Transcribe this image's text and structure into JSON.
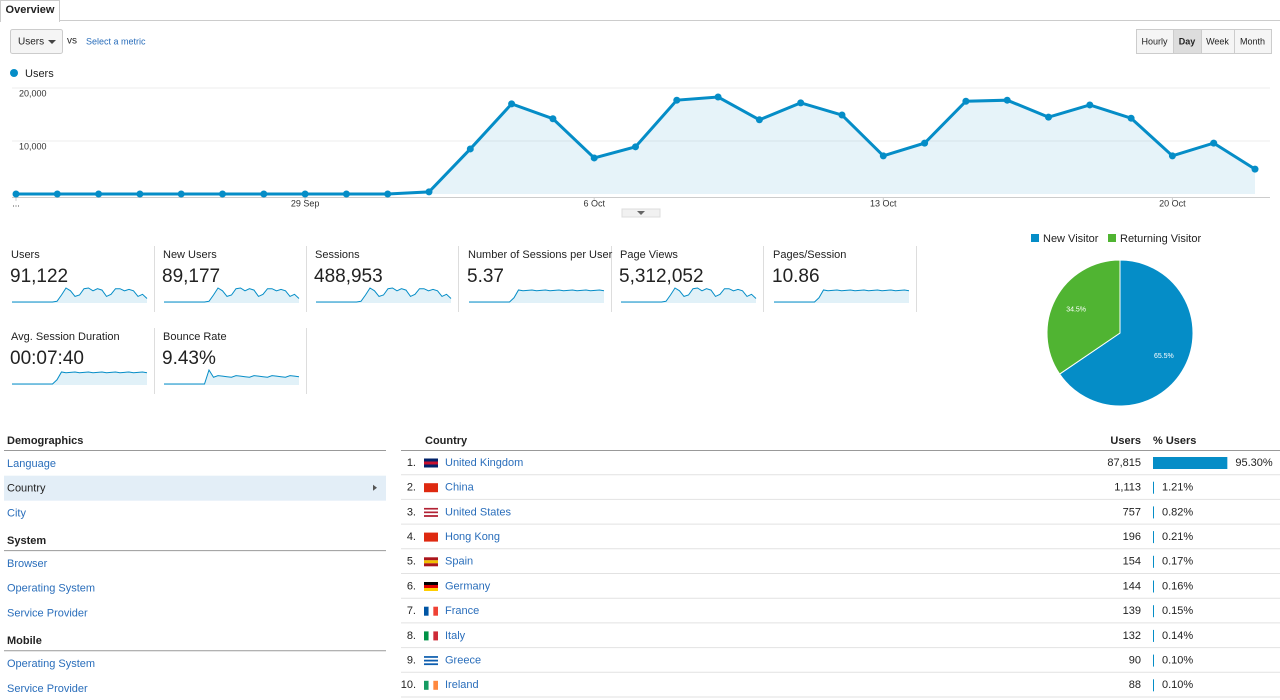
{
  "tabs": [
    "Overview"
  ],
  "controls": {
    "metric": "Users",
    "vs": "vs",
    "select_metric": "Select a metric",
    "granularity": [
      {
        "label": "Hourly",
        "active": false
      },
      {
        "label": "Day",
        "active": true
      },
      {
        "label": "Week",
        "active": false
      },
      {
        "label": "Month",
        "active": false
      }
    ]
  },
  "chart_data": [
    {
      "type": "line",
      "x": [
        "...",
        null,
        null,
        null,
        null,
        null,
        null,
        "29 Sep",
        null,
        null,
        null,
        null,
        null,
        null,
        "6 Oct",
        null,
        null,
        null,
        null,
        null,
        null,
        "13 Oct",
        null,
        null,
        null,
        null,
        null,
        null,
        "20 Oct",
        null,
        null
      ],
      "series": [
        {
          "name": "Users",
          "color": "#058dc7",
          "values": [
            0,
            0,
            0,
            0,
            0,
            0,
            0,
            0,
            0,
            0,
            400,
            8500,
            17000,
            14200,
            6800,
            8900,
            17700,
            18300,
            14000,
            17200,
            14900,
            7200,
            9600,
            17500,
            17700,
            14500,
            16800,
            14300,
            7200,
            9600,
            4700
          ]
        }
      ],
      "ylim": [
        0,
        20000
      ],
      "yticks": [
        {
          "value": 10000,
          "label": "10,000"
        },
        {
          "value": 20000,
          "label": "20,000"
        }
      ],
      "grid": true,
      "area": true
    },
    {
      "type": "pie",
      "categories": [
        "New Visitor",
        "Returning Visitor"
      ],
      "values": [
        65.5,
        34.5
      ],
      "value_labels": [
        "65.5%",
        "34.5%"
      ],
      "colors": [
        "#058dc7",
        "#50b432"
      ],
      "legend": "top"
    }
  ],
  "metrics": [
    {
      "label": "Users",
      "value": "91,122"
    },
    {
      "label": "New Users",
      "value": "89,177"
    },
    {
      "label": "Sessions",
      "value": "488,953"
    },
    {
      "label": "Number of Sessions per User",
      "value": "5.37"
    },
    {
      "label": "Page Views",
      "value": "5,312,052"
    },
    {
      "label": "Pages/Session",
      "value": "10.86"
    },
    {
      "label": "Avg. Session Duration",
      "value": "00:07:40"
    },
    {
      "label": "Bounce Rate",
      "value": "9.43%"
    }
  ],
  "nav": [
    {
      "heading": "Demographics",
      "items": [
        {
          "label": "Language",
          "active": false
        },
        {
          "label": "Country",
          "active": true
        },
        {
          "label": "City",
          "active": false
        }
      ]
    },
    {
      "heading": "System",
      "items": [
        {
          "label": "Browser",
          "active": false
        },
        {
          "label": "Operating System",
          "active": false
        },
        {
          "label": "Service Provider",
          "active": false
        }
      ]
    },
    {
      "heading": "Mobile",
      "items": [
        {
          "label": "Operating System",
          "active": false
        },
        {
          "label": "Service Provider",
          "active": false
        }
      ]
    }
  ],
  "table": {
    "columns": [
      "Country",
      "Users",
      "% Users"
    ],
    "rows": [
      {
        "rank": "1.",
        "country": "United Kingdom",
        "users": "87,815",
        "share": 95.3,
        "share_label": "95.30%"
      },
      {
        "rank": "2.",
        "country": "China",
        "users": "1,113",
        "share": 1.21,
        "share_label": "1.21%"
      },
      {
        "rank": "3.",
        "country": "United States",
        "users": "757",
        "share": 0.82,
        "share_label": "0.82%"
      },
      {
        "rank": "4.",
        "country": "Hong Kong",
        "users": "196",
        "share": 0.21,
        "share_label": "0.21%"
      },
      {
        "rank": "5.",
        "country": "Spain",
        "users": "154",
        "share": 0.17,
        "share_label": "0.17%"
      },
      {
        "rank": "6.",
        "country": "Germany",
        "users": "144",
        "share": 0.16,
        "share_label": "0.16%"
      },
      {
        "rank": "7.",
        "country": "France",
        "users": "139",
        "share": 0.15,
        "share_label": "0.15%"
      },
      {
        "rank": "8.",
        "country": "Italy",
        "users": "132",
        "share": 0.14,
        "share_label": "0.14%"
      },
      {
        "rank": "9.",
        "country": "Greece",
        "users": "90",
        "share": 0.1,
        "share_label": "0.10%"
      },
      {
        "rank": "10.",
        "country": "Ireland",
        "users": "88",
        "share": 0.1,
        "share_label": "0.10%"
      }
    ]
  }
}
